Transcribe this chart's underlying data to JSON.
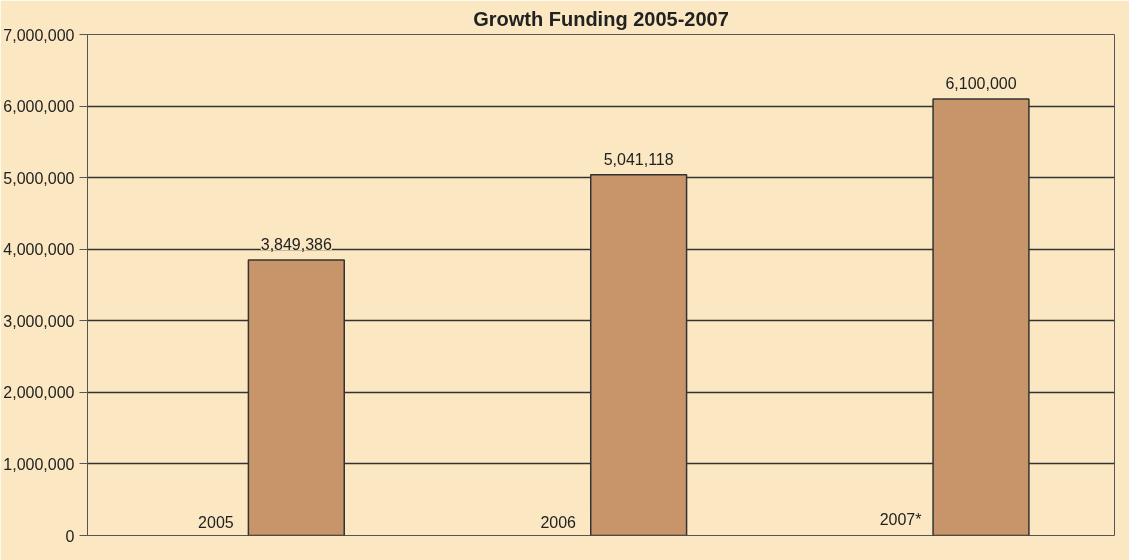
{
  "chart_data": {
    "type": "bar",
    "title": "Growth Funding 2005-2007",
    "categories": [
      "2005",
      "2006",
      "2007*"
    ],
    "values": [
      3849386,
      5041118,
      6100000
    ],
    "color": "#c8956a",
    "value_labels": [
      "3,849,386",
      "5,041,118",
      "6,100,000"
    ],
    "ylim": [
      0,
      7000000
    ],
    "yticks": [
      {
        "value": 0,
        "label": "0"
      },
      {
        "value": 1000000,
        "label": "1,000,000"
      },
      {
        "value": 2000000,
        "label": "2,000,000"
      },
      {
        "value": 3000000,
        "label": "3,000,000"
      },
      {
        "value": 4000000,
        "label": "4,000,000"
      },
      {
        "value": 5000000,
        "label": "5,000,000"
      },
      {
        "value": 6000000,
        "label": "6,000,000"
      },
      {
        "value": 7000000,
        "label": "7,000,000"
      }
    ],
    "grid": "y"
  }
}
